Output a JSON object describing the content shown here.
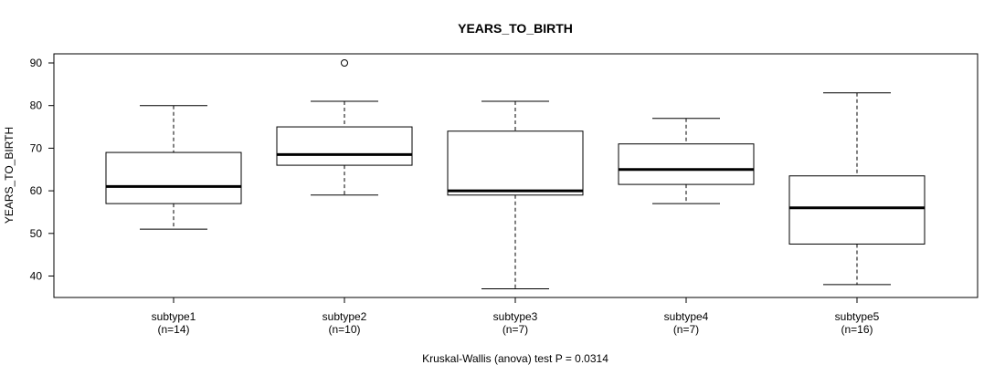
{
  "chart_data": {
    "type": "boxplot",
    "title": "YEARS_TO_BIRTH",
    "ylabel": "YEARS_TO_BIRTH",
    "xlabel": "",
    "ylim": [
      35,
      92
    ],
    "yticks": [
      40,
      50,
      60,
      70,
      80,
      90
    ],
    "note": "Kruskal-Wallis (anova) test P = 0.0314",
    "groups": [
      {
        "name": "subtype1",
        "n_label": "(n=14)",
        "whisker_low": 51,
        "q1": 57,
        "median": 61,
        "q3": 69,
        "whisker_high": 80,
        "outliers": []
      },
      {
        "name": "subtype2",
        "n_label": "(n=10)",
        "whisker_low": 59,
        "q1": 66,
        "median": 68.5,
        "q3": 75,
        "whisker_high": 81,
        "outliers": [
          90
        ]
      },
      {
        "name": "subtype3",
        "n_label": "(n=7)",
        "whisker_low": 37,
        "q1": 59,
        "median": 60,
        "q3": 74,
        "whisker_high": 81,
        "outliers": []
      },
      {
        "name": "subtype4",
        "n_label": "(n=7)",
        "whisker_low": 57,
        "q1": 61.5,
        "median": 65,
        "q3": 71,
        "whisker_high": 77,
        "outliers": []
      },
      {
        "name": "subtype5",
        "n_label": "(n=16)",
        "whisker_low": 38,
        "q1": 47.5,
        "median": 56,
        "q3": 63.5,
        "whisker_high": 83,
        "outliers": []
      }
    ]
  }
}
